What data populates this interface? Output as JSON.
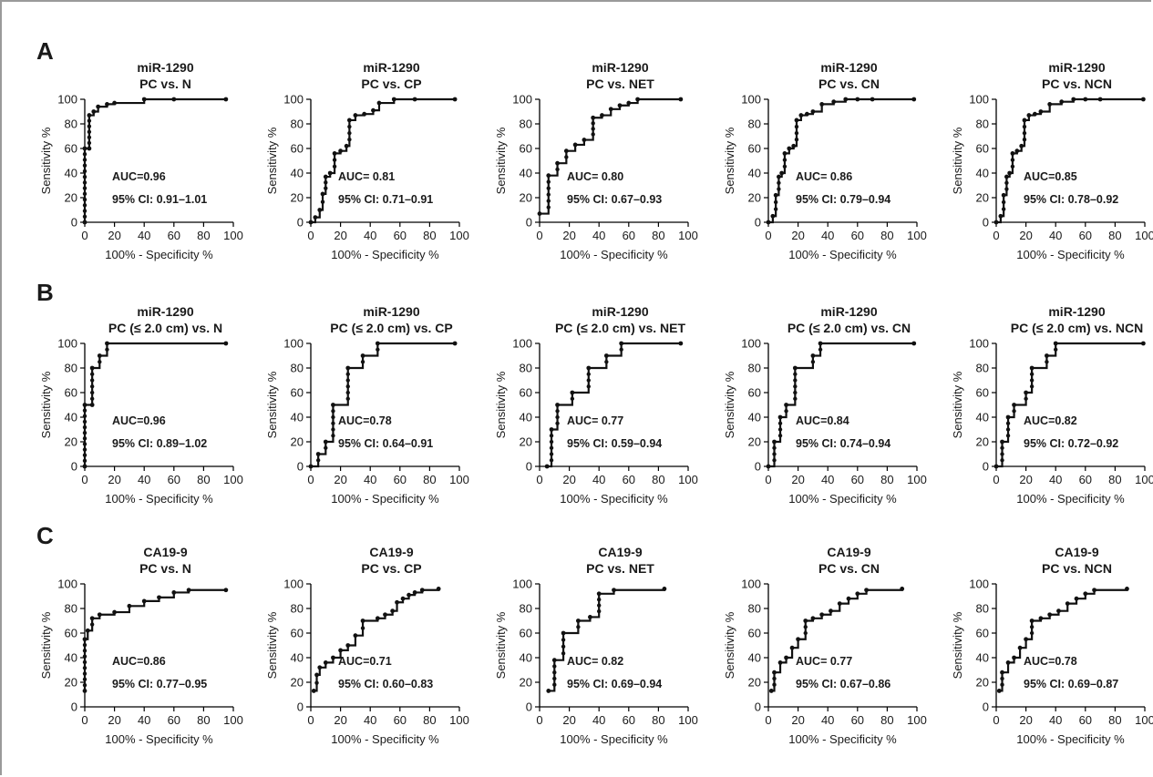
{
  "figure": {
    "panel_labels": [
      "A",
      "B",
      "C"
    ],
    "x_axis_title": "100% - Specificity %",
    "y_axis_title": "Sensitivity %",
    "ticks": [
      "0",
      "20",
      "40",
      "60",
      "80",
      "100"
    ]
  },
  "chart_data": [
    {
      "type": "line",
      "panel": "A",
      "title": [
        "miR-1290",
        "PC vs. N"
      ],
      "xlabel": "100% - Specificity %",
      "ylabel": "Sensitivity %",
      "xlim": [
        0,
        100
      ],
      "ylim": [
        0,
        100
      ],
      "auc": "AUC=0.96",
      "ci": "95% CI: 0.91–1.01",
      "step": true,
      "x": [
        0,
        0,
        3,
        3,
        6,
        9,
        15,
        20,
        40,
        60,
        95
      ],
      "y": [
        0,
        60,
        60,
        87,
        90,
        94,
        96,
        97,
        100,
        100,
        100
      ]
    },
    {
      "type": "line",
      "panel": "A",
      "title": [
        "miR-1290",
        "PC vs. CP"
      ],
      "xlabel": "100% - Specificity %",
      "ylabel": "Sensitivity %",
      "xlim": [
        0,
        100
      ],
      "ylim": [
        0,
        100
      ],
      "auc": "AUC= 0.81",
      "ci": "95% CI: 0.71–0.91",
      "step": true,
      "x": [
        0,
        3,
        6,
        8,
        10,
        13,
        16,
        20,
        24,
        26,
        30,
        36,
        42,
        46,
        56,
        70,
        97
      ],
      "y": [
        0,
        4,
        10,
        23,
        37,
        40,
        56,
        58,
        62,
        83,
        87,
        88,
        91,
        97,
        100,
        100,
        100
      ]
    },
    {
      "type": "line",
      "panel": "A",
      "title": [
        "miR-1290",
        "PC vs. NET"
      ],
      "xlabel": "100% - Specificity %",
      "ylabel": "Sensitivity %",
      "xlim": [
        0,
        100
      ],
      "ylim": [
        0,
        100
      ],
      "auc": "AUC= 0.80",
      "ci": "95% CI: 0.67–0.93",
      "step": true,
      "x": [
        0,
        6,
        12,
        18,
        24,
        30,
        36,
        42,
        48,
        54,
        60,
        66,
        95
      ],
      "y": [
        7,
        38,
        48,
        58,
        63,
        67,
        85,
        87,
        92,
        95,
        97,
        100,
        100
      ]
    },
    {
      "type": "line",
      "panel": "A",
      "title": [
        "miR-1290",
        "PC vs. CN"
      ],
      "xlabel": "100% - Specificity %",
      "ylabel": "Sensitivity %",
      "xlim": [
        0,
        100
      ],
      "ylim": [
        0,
        100
      ],
      "auc": "AUC= 0.86",
      "ci": "95% CI: 0.79–0.94",
      "step": true,
      "x": [
        0,
        3,
        5,
        7,
        9,
        11,
        14,
        17,
        19,
        22,
        26,
        30,
        36,
        44,
        52,
        60,
        70,
        98
      ],
      "y": [
        0,
        5,
        22,
        37,
        40,
        56,
        60,
        62,
        83,
        87,
        88,
        90,
        96,
        98,
        100,
        100,
        100,
        100
      ]
    },
    {
      "type": "line",
      "panel": "A",
      "title": [
        "miR-1290",
        "PC vs. NCN"
      ],
      "xlabel": "100% - Specificity %",
      "ylabel": "Sensitivity %",
      "xlim": [
        0,
        100
      ],
      "ylim": [
        0,
        100
      ],
      "auc": "AUC=0.85",
      "ci": "95% CI: 0.78–0.92",
      "step": true,
      "x": [
        0,
        3,
        5,
        7,
        9,
        11,
        14,
        17,
        19,
        22,
        26,
        30,
        36,
        44,
        52,
        60,
        70,
        99
      ],
      "y": [
        0,
        5,
        22,
        37,
        40,
        56,
        58,
        62,
        83,
        87,
        88,
        90,
        96,
        98,
        100,
        100,
        100,
        100
      ]
    },
    {
      "type": "line",
      "panel": "B",
      "title": [
        "miR-1290",
        "PC (≤ 2.0 cm) vs. N"
      ],
      "xlabel": "100% - Specificity %",
      "ylabel": "Sensitivity %",
      "xlim": [
        0,
        100
      ],
      "ylim": [
        0,
        100
      ],
      "auc": "AUC=0.96",
      "ci": "95% CI: 0.89–1.02",
      "step": true,
      "x": [
        0,
        0,
        5,
        5,
        10,
        15,
        95
      ],
      "y": [
        0,
        50,
        50,
        80,
        90,
        100,
        100
      ]
    },
    {
      "type": "line",
      "panel": "B",
      "title": [
        "miR-1290",
        "PC (≤ 2.0 cm) vs. CP"
      ],
      "xlabel": "100% - Specificity %",
      "ylabel": "Sensitivity %",
      "xlim": [
        0,
        100
      ],
      "ylim": [
        0,
        100
      ],
      "auc": "AUC=0.78",
      "ci": "95% CI: 0.64–0.91",
      "step": true,
      "x": [
        0,
        5,
        10,
        15,
        25,
        35,
        45,
        97
      ],
      "y": [
        0,
        10,
        20,
        50,
        80,
        90,
        100,
        100
      ]
    },
    {
      "type": "line",
      "panel": "B",
      "title": [
        "miR-1290",
        "PC (≤ 2.0 cm) vs. NET"
      ],
      "xlabel": "100% - Specificity %",
      "ylabel": "Sensitivity %",
      "xlim": [
        0,
        100
      ],
      "ylim": [
        0,
        100
      ],
      "auc": "AUC= 0.77",
      "ci": "95% CI: 0.59–0.94",
      "step": true,
      "x": [
        5,
        8,
        12,
        22,
        33,
        45,
        55,
        95
      ],
      "y": [
        0,
        30,
        50,
        60,
        80,
        90,
        100,
        100
      ]
    },
    {
      "type": "line",
      "panel": "B",
      "title": [
        "miR-1290",
        "PC (≤ 2.0 cm) vs. CN"
      ],
      "xlabel": "100% - Specificity %",
      "ylabel": "Sensitivity %",
      "xlim": [
        0,
        100
      ],
      "ylim": [
        0,
        100
      ],
      "auc": "AUC=0.84",
      "ci": "95% CI: 0.74–0.94",
      "step": true,
      "x": [
        0,
        4,
        8,
        12,
        18,
        30,
        35,
        98
      ],
      "y": [
        0,
        20,
        40,
        50,
        80,
        90,
        100,
        100
      ]
    },
    {
      "type": "line",
      "panel": "B",
      "title": [
        "miR-1290",
        "PC (≤ 2.0 cm) vs. NCN"
      ],
      "xlabel": "100% - Specificity %",
      "ylabel": "Sensitivity %",
      "xlim": [
        0,
        100
      ],
      "ylim": [
        0,
        100
      ],
      "auc": "AUC=0.82",
      "ci": "95% CI: 0.72–0.92",
      "step": true,
      "x": [
        0,
        4,
        8,
        12,
        20,
        24,
        34,
        40,
        99
      ],
      "y": [
        0,
        20,
        40,
        50,
        60,
        80,
        90,
        100,
        100
      ]
    },
    {
      "type": "line",
      "panel": "C",
      "title": [
        "CA19-9",
        "PC vs. N"
      ],
      "xlabel": "100% - Specificity %",
      "ylabel": "Sensitivity %",
      "xlim": [
        0,
        100
      ],
      "ylim": [
        0,
        100
      ],
      "auc": "AUC=0.86",
      "ci": "95% CI: 0.77–0.95",
      "step": true,
      "x": [
        0,
        0,
        2,
        5,
        10,
        20,
        30,
        40,
        50,
        60,
        70,
        95
      ],
      "y": [
        13,
        55,
        62,
        72,
        75,
        77,
        82,
        86,
        89,
        93,
        95,
        95
      ]
    },
    {
      "type": "line",
      "panel": "C",
      "title": [
        "CA19-9",
        "PC vs. CP"
      ],
      "xlabel": "100% - Specificity %",
      "ylabel": "Sensitivity %",
      "xlim": [
        0,
        100
      ],
      "ylim": [
        0,
        100
      ],
      "auc": "AUC=0.71",
      "ci": "95% CI: 0.60–0.83",
      "step": true,
      "x": [
        2,
        4,
        6,
        10,
        15,
        20,
        25,
        30,
        35,
        45,
        50,
        55,
        58,
        62,
        66,
        70,
        75,
        86
      ],
      "y": [
        13,
        26,
        32,
        36,
        40,
        46,
        50,
        58,
        70,
        72,
        75,
        78,
        85,
        88,
        91,
        93,
        95,
        96
      ]
    },
    {
      "type": "line",
      "panel": "C",
      "title": [
        "CA19-9",
        "PC vs. NET"
      ],
      "xlabel": "100% - Specificity %",
      "ylabel": "Sensitivity %",
      "xlim": [
        0,
        100
      ],
      "ylim": [
        0,
        100
      ],
      "auc": "AUC= 0.82",
      "ci": "95% CI: 0.69–0.94",
      "step": true,
      "x": [
        6,
        10,
        16,
        26,
        34,
        40,
        50,
        84
      ],
      "y": [
        13,
        38,
        60,
        70,
        73,
        92,
        95,
        96
      ]
    },
    {
      "type": "line",
      "panel": "C",
      "title": [
        "CA19-9",
        "PC vs. CN"
      ],
      "xlabel": "100% - Specificity %",
      "ylabel": "Sensitivity %",
      "xlim": [
        0,
        100
      ],
      "ylim": [
        0,
        100
      ],
      "auc": "AUC= 0.77",
      "ci": "95% CI: 0.67–0.86",
      "step": true,
      "x": [
        2,
        4,
        8,
        12,
        16,
        20,
        25,
        30,
        36,
        42,
        48,
        54,
        60,
        66,
        90
      ],
      "y": [
        13,
        28,
        36,
        40,
        48,
        55,
        70,
        72,
        75,
        78,
        84,
        88,
        92,
        95,
        96
      ]
    },
    {
      "type": "line",
      "panel": "C",
      "title": [
        "CA19-9",
        "PC vs. NCN"
      ],
      "xlabel": "100% - Specificity %",
      "ylabel": "Sensitivity %",
      "xlim": [
        0,
        100
      ],
      "ylim": [
        0,
        100
      ],
      "auc": "AUC=0.78",
      "ci": "95% CI: 0.69–0.87",
      "step": true,
      "x": [
        2,
        4,
        8,
        12,
        16,
        20,
        24,
        30,
        36,
        42,
        48,
        54,
        60,
        66,
        88
      ],
      "y": [
        13,
        28,
        36,
        40,
        48,
        55,
        70,
        72,
        75,
        78,
        84,
        88,
        92,
        95,
        96
      ]
    }
  ]
}
